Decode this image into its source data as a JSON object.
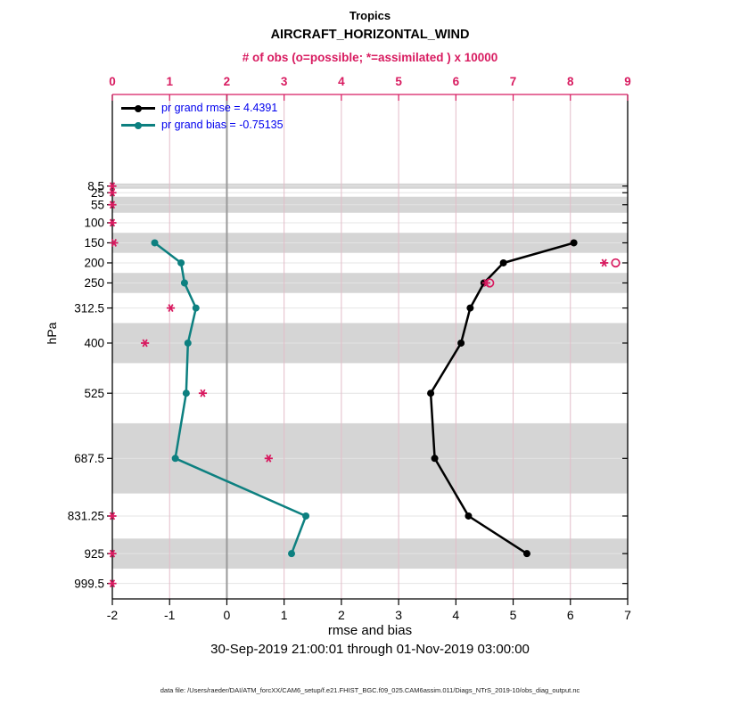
{
  "chart_data": {
    "type": "line",
    "title": "Tropics",
    "subtitle": "AIRCRAFT_HORIZONTAL_WIND",
    "top_axis_label": "# of obs (o=possible; *=assimilated ) x 10000",
    "xlabel": "rmse and bias",
    "ylabel": "hPa",
    "timespan": "30-Sep-2019 21:00:01 through 01-Nov-2019 03:00:00",
    "footer": "data file: /Users/raeder/DAI/ATM_forcXX/CAM6_setup/f.e21.FHIST_BGC.f09_025.CAM6assim.011/Diags_NTrS_2019-10/obs_diag_output.nc",
    "xlim": [
      -2,
      7
    ],
    "top_xlim": [
      0,
      9
    ],
    "ylim": [
      -220,
      1038
    ],
    "x_ticks": [
      -2,
      -1,
      0,
      1,
      2,
      3,
      4,
      5,
      6,
      7
    ],
    "top_ticks": [
      0,
      1,
      2,
      3,
      4,
      5,
      6,
      7,
      8,
      9
    ],
    "y_tick_levels_hpa": [
      8.5,
      25,
      55,
      100,
      150,
      200,
      250,
      312.5,
      400,
      525,
      687.5,
      831.25,
      925,
      999.5
    ],
    "gray_bands_hpa": [
      [
        2,
        15
      ],
      [
        35,
        75
      ],
      [
        125,
        175
      ],
      [
        225,
        275
      ],
      [
        350,
        450
      ],
      [
        600,
        775
      ],
      [
        887.5,
        962.5
      ]
    ],
    "zero_reference_x": 0,
    "series": [
      {
        "name": "pr grand rmse",
        "color": "#000000",
        "points": [
          [
            150,
            6.06
          ],
          [
            200,
            4.83
          ],
          [
            250,
            4.49
          ],
          [
            312.5,
            4.25
          ],
          [
            400,
            4.09
          ],
          [
            525,
            3.56
          ],
          [
            687.5,
            3.63
          ],
          [
            831.25,
            4.22
          ],
          [
            925,
            5.24
          ]
        ]
      },
      {
        "name": "pr grand bias",
        "color": "#0d8080",
        "points": [
          [
            150,
            -1.26
          ],
          [
            200,
            -0.8
          ],
          [
            250,
            -0.74
          ],
          [
            312.5,
            -0.54
          ],
          [
            400,
            -0.68
          ],
          [
            525,
            -0.71
          ],
          [
            687.5,
            -0.9
          ],
          [
            831.25,
            1.38
          ],
          [
            925,
            1.13
          ]
        ]
      }
    ],
    "obs_counts_x10000": {
      "assimilated": [
        [
          8.5,
          0
        ],
        [
          25,
          0
        ],
        [
          55,
          0
        ],
        [
          100,
          0
        ],
        [
          150,
          0.03
        ],
        [
          200,
          8.59
        ],
        [
          250,
          6.53
        ],
        [
          312.5,
          1.02
        ],
        [
          400,
          0.57
        ],
        [
          525,
          1.58
        ],
        [
          687.5,
          2.73
        ],
        [
          831.25,
          0
        ],
        [
          925,
          0
        ],
        [
          999.5,
          0
        ]
      ],
      "possible": [
        [
          200,
          8.79
        ],
        [
          250,
          6.59
        ]
      ]
    },
    "legend": {
      "rmse_label": "pr grand rmse = 4.4391",
      "bias_label": "pr grand bias = -0.75135"
    },
    "colors": {
      "accent_magenta": "#d81b60",
      "series_rmse": "#000000",
      "series_bias": "#0d8080",
      "legend_text": "#0000ee",
      "band_gray": "#d5d5d5",
      "hgrid": "#e4e4e4",
      "vgrid_pink": "#e3bcc8",
      "zero_line": "#9a9a9a",
      "spine_black": "#000000"
    }
  }
}
